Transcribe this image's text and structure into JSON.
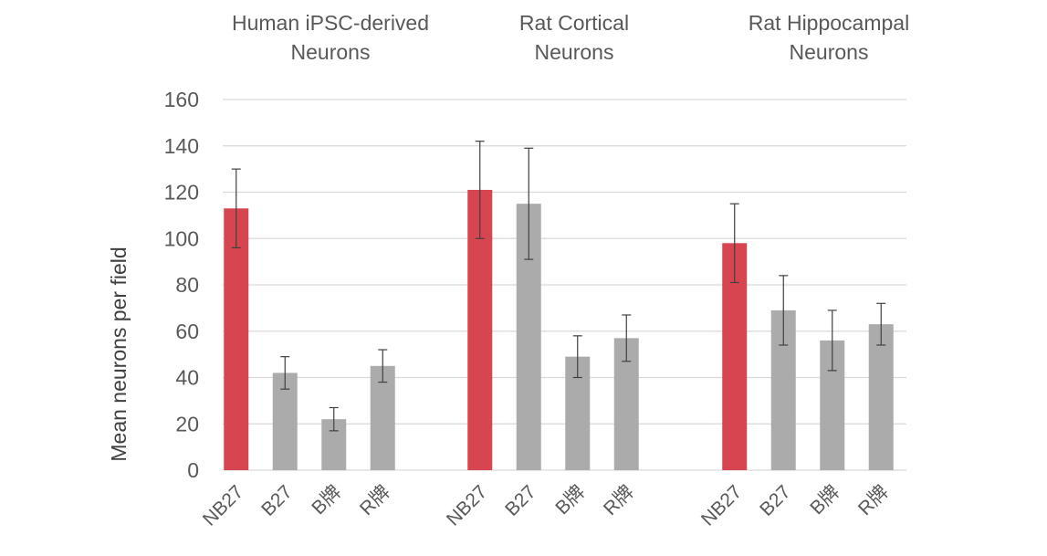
{
  "chart_data": {
    "type": "bar",
    "ylabel": "Mean neurons per field",
    "ylim": [
      0,
      160
    ],
    "yticks": [
      0,
      20,
      40,
      60,
      80,
      100,
      120,
      140,
      160
    ],
    "grid": true,
    "colors": {
      "highlight": "#d64550",
      "default": "#ababab"
    },
    "groups": [
      {
        "title_lines": [
          "Human iPSC-derived",
          "Neurons"
        ],
        "bars": [
          {
            "category": "NB27",
            "value": 113,
            "err_low": 96,
            "err_high": 130,
            "highlight": true
          },
          {
            "category": "B27",
            "value": 42,
            "err_low": 35,
            "err_high": 49,
            "highlight": false
          },
          {
            "category": "B牌",
            "value": 22,
            "err_low": 17,
            "err_high": 27,
            "highlight": false
          },
          {
            "category": "R牌",
            "value": 45,
            "err_low": 38,
            "err_high": 52,
            "highlight": false
          }
        ]
      },
      {
        "title_lines": [
          "Rat Cortical",
          "Neurons"
        ],
        "bars": [
          {
            "category": "NB27",
            "value": 121,
            "err_low": 100,
            "err_high": 142,
            "highlight": true
          },
          {
            "category": "B27",
            "value": 115,
            "err_low": 91,
            "err_high": 139,
            "highlight": false
          },
          {
            "category": "B牌",
            "value": 49,
            "err_low": 40,
            "err_high": 58,
            "highlight": false
          },
          {
            "category": "R牌",
            "value": 57,
            "err_low": 47,
            "err_high": 67,
            "highlight": false
          }
        ]
      },
      {
        "title_lines": [
          "Rat Hippocampal",
          "Neurons"
        ],
        "bars": [
          {
            "category": "NB27",
            "value": 98,
            "err_low": 81,
            "err_high": 115,
            "highlight": true
          },
          {
            "category": "B27",
            "value": 69,
            "err_low": 54,
            "err_high": 84,
            "highlight": false
          },
          {
            "category": "B牌",
            "value": 56,
            "err_low": 43,
            "err_high": 69,
            "highlight": false
          },
          {
            "category": "R牌",
            "value": 63,
            "err_low": 54,
            "err_high": 72,
            "highlight": false
          }
        ]
      }
    ]
  }
}
